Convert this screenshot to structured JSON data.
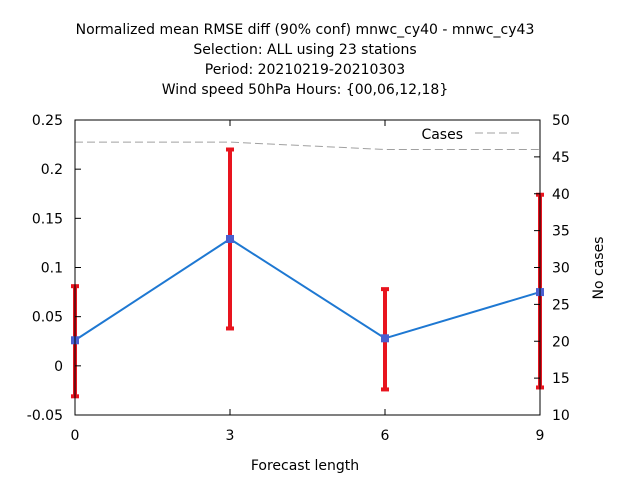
{
  "chart_data": {
    "type": "line",
    "title_lines": [
      "Normalized mean RMSE diff (90% conf) mnwc_cy40 - mnwc_cy43",
      "Selection: ALL using    23 stations",
      "Period: 20210219-20210303",
      "Wind speed 50hPa   Hours: {00,06,12,18}"
    ],
    "xlabel": "Forecast length",
    "ylabel": "",
    "y2label": "No cases",
    "x_ticks": [
      "0",
      "3",
      "6",
      "9"
    ],
    "y_ticks": [
      "-0.05",
      "0",
      "0.05",
      "0.1",
      "0.15",
      "0.2",
      "0.25"
    ],
    "y2_ticks": [
      "10",
      "15",
      "20",
      "25",
      "30",
      "35",
      "40",
      "45",
      "50"
    ],
    "xlim": [
      0,
      9
    ],
    "ylim": [
      -0.05,
      0.25
    ],
    "y2lim": [
      10,
      50
    ],
    "grid": false,
    "legend_position": "top-right",
    "series": [
      {
        "values": [
          {
            "x": 0,
            "y": 0.026
          },
          {
            "x": 3,
            "y": 0.129
          },
          {
            "x": 6,
            "y": 0.028
          },
          {
            "x": 9,
            "y": 0.075
          }
        ],
        "color": "#1e78d2"
      },
      {
        "name": "Cases",
        "axis": "y2",
        "style": "dashed",
        "color": "#a0a0a0",
        "values": [
          {
            "x": 0,
            "y": 47
          },
          {
            "x": 3,
            "y": 47
          },
          {
            "x": 6,
            "y": 46
          },
          {
            "x": 9,
            "y": 46
          }
        ]
      }
    ],
    "error_bars": {
      "color": "#e8141e",
      "values": [
        {
          "x": 0,
          "low": -0.031,
          "high": 0.081
        },
        {
          "x": 3,
          "low": 0.038,
          "high": 0.22
        },
        {
          "x": 6,
          "low": -0.024,
          "high": 0.078
        },
        {
          "x": 9,
          "low": -0.022,
          "high": 0.174
        }
      ]
    }
  }
}
